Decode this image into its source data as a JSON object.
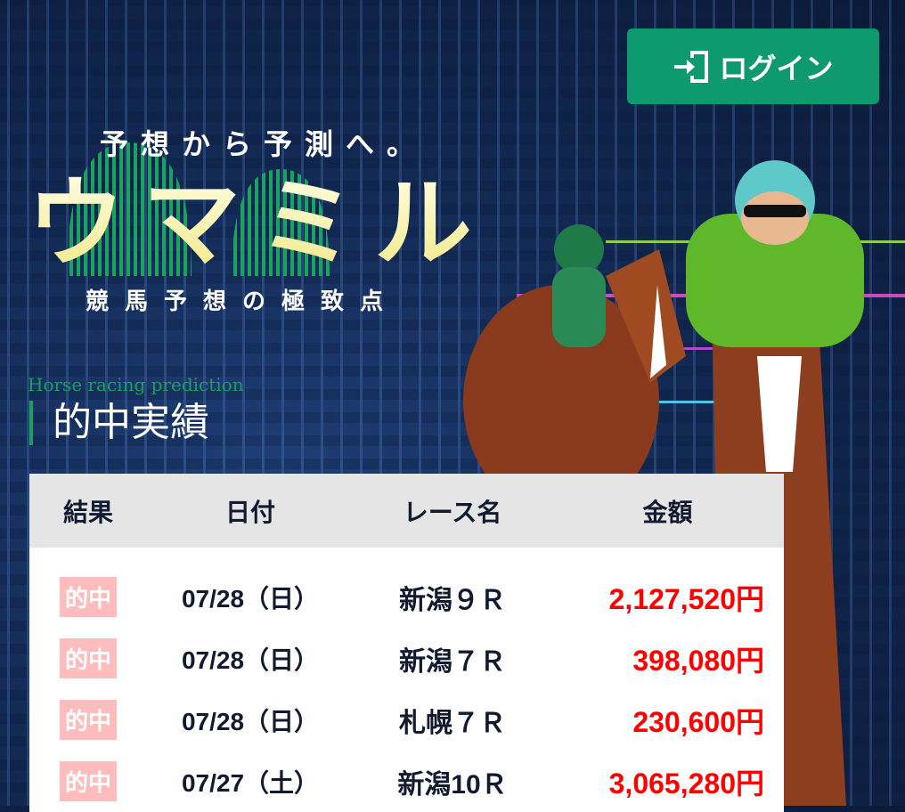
{
  "header": {
    "login_label": "ログイン",
    "login_icon": "door-enter-icon",
    "login_color": "#0e9a6e"
  },
  "hero": {
    "tagline": "予想から予測へ。",
    "logo": "ウマミル",
    "subtitle": "競馬予想の極致点"
  },
  "section": {
    "eyebrow": "Horse racing prediction",
    "title": "的中実績"
  },
  "table": {
    "headers": [
      "結果",
      "日付",
      "レース名",
      "金額"
    ],
    "rows": [
      {
        "result": "的中",
        "date": "07/28（日）",
        "race": "新潟９Ｒ",
        "amount": "2,127,520円"
      },
      {
        "result": "的中",
        "date": "07/28（日）",
        "race": "新潟７Ｒ",
        "amount": "398,080円"
      },
      {
        "result": "的中",
        "date": "07/28（日）",
        "race": "札幌７Ｒ",
        "amount": "230,600円"
      },
      {
        "result": "的中",
        "date": "07/27（土）",
        "race": "新潟10Ｒ",
        "amount": "3,065,280円"
      }
    ],
    "badge_color": "#ffbcbc",
    "amount_color": "#ff0000"
  }
}
